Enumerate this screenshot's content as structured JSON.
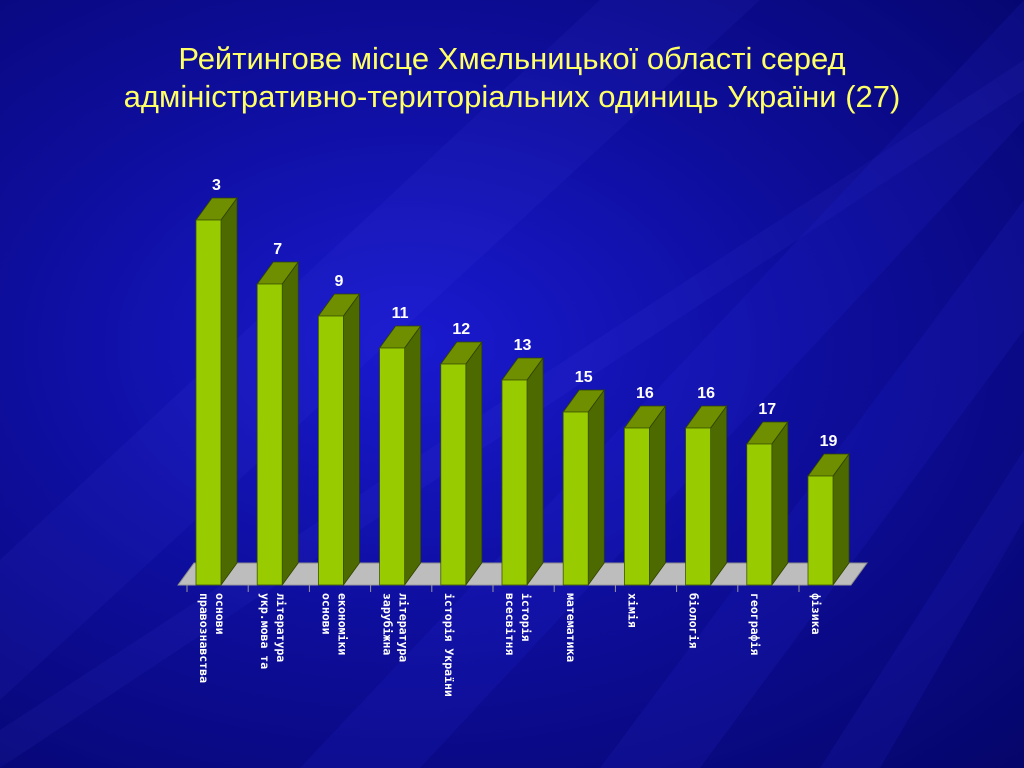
{
  "title": {
    "line1": "Рейтингове місце Хмельницької області серед",
    "line2": "адміністративно-територіальних одиниць України (27)"
  },
  "colors": {
    "bar_front": "#99cc00",
    "bar_side": "#4d6a00",
    "bar_top": "#6f8f00",
    "floor": "#bdbdbd",
    "title": "#ffff66"
  },
  "chart_data": {
    "type": "bar",
    "style": "3d",
    "grid": false,
    "legend": "none",
    "ylim": [
      0,
      27
    ],
    "categories": [
      [
        "правознавства",
        "основи"
      ],
      [
        "укр.мова та",
        "література"
      ],
      [
        "основи",
        "економіки"
      ],
      [
        "зарубіжна",
        "література"
      ],
      [
        "історія України"
      ],
      [
        "всесвітня",
        "історія"
      ],
      [
        "математика"
      ],
      [
        "хімія"
      ],
      [
        "біологія"
      ],
      [
        "географія"
      ],
      [
        "фізика"
      ]
    ],
    "values": [
      3,
      7,
      9,
      11,
      12,
      13,
      15,
      16,
      16,
      17,
      19
    ]
  }
}
